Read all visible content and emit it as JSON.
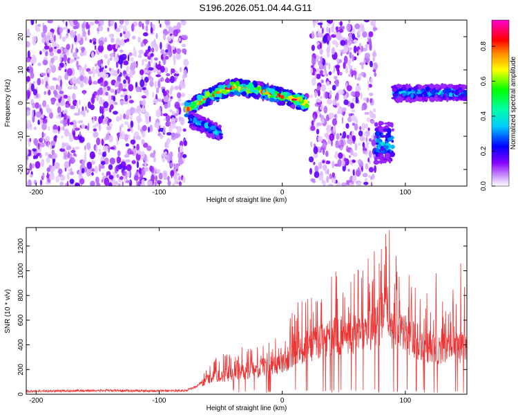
{
  "figure_title": "S196.2026.051.04.44.G11",
  "colors": {
    "axis": "#000000",
    "snr_line": "#ee3333",
    "background": "#ffffff"
  },
  "chart_data": [
    {
      "type": "heatmap",
      "title": "S196.2026.051.04.44.G11",
      "xlabel": "Height of straight line (km)",
      "ylabel": "Frequency (Hz)",
      "xlim": [
        -208,
        150
      ],
      "ylim": [
        -25,
        25
      ],
      "xticks": [
        -200,
        -100,
        0,
        100
      ],
      "yticks": [
        -20,
        -10,
        0,
        10,
        20
      ],
      "colorbar": {
        "label": "Normalized spectral amplitude",
        "range": [
          0,
          0.95
        ],
        "ticks": [
          0.0,
          0.2,
          0.4,
          0.6,
          0.8
        ],
        "tick_labels": [
          "0.0",
          "0.2",
          "0.4",
          "0.6",
          "0.8"
        ],
        "colormap": "rainbow (violet-blue-cyan-green-yellow-red-magenta)"
      },
      "regions": [
        {
          "name": "noise",
          "x_range": [
            -208,
            -78
          ],
          "f_range": [
            -25,
            25
          ],
          "level": "low"
        },
        {
          "name": "noise",
          "x_range": [
            23,
            76
          ],
          "f_range": [
            -25,
            25
          ],
          "level": "low"
        },
        {
          "name": "signal-track",
          "x_range": [
            -78,
            20
          ],
          "f_center": [
            [
              -78,
              -2
            ],
            [
              -60,
              2
            ],
            [
              -40,
              5
            ],
            [
              -20,
              4
            ],
            [
              0,
              2
            ],
            [
              20,
              0
            ]
          ],
          "level": "high"
        },
        {
          "name": "signal-branch",
          "x_range": [
            -75,
            -50
          ],
          "f_center": [
            [
              -75,
              -5
            ],
            [
              -62,
              -7
            ],
            [
              -52,
              -9
            ]
          ],
          "level": "mid"
        },
        {
          "name": "signal-burst",
          "x_range": [
            76,
            90
          ],
          "f_center": [
            [
              83,
              -12
            ]
          ],
          "level": "mid"
        },
        {
          "name": "signal-band",
          "x_range": [
            90,
            150
          ],
          "f_center": [
            [
              90,
              3
            ],
            [
              150,
              3
            ]
          ],
          "level": "mid"
        }
      ]
    },
    {
      "type": "line",
      "xlabel": "Height of straight line (km)",
      "ylabel": "SNR (10 * v/v)",
      "xlim": [
        -208,
        150
      ],
      "ylim": [
        0,
        1350
      ],
      "xticks": [
        -200,
        -100,
        0,
        100
      ],
      "yticks": [
        0,
        200,
        400,
        600,
        800,
        1000,
        1200
      ],
      "series": [
        {
          "name": "SNR",
          "x": [
            -208,
            -150,
            -100,
            -78,
            -70,
            -60,
            -50,
            -40,
            -30,
            -20,
            -10,
            0,
            10,
            20,
            30,
            40,
            50,
            60,
            70,
            80,
            85,
            90,
            100,
            110,
            120,
            130,
            140,
            150
          ],
          "values": [
            25,
            30,
            28,
            30,
            60,
            150,
            180,
            190,
            220,
            240,
            270,
            300,
            400,
            450,
            500,
            550,
            560,
            600,
            620,
            700,
            800,
            650,
            600,
            500,
            450,
            420,
            500,
            400
          ],
          "peaks_x": [
            75,
            80,
            83,
            87,
            95,
            105,
            125,
            145,
            148
          ],
          "peaks_values": [
            850,
            1000,
            1050,
            1330,
            950,
            870,
            980,
            1060,
            870
          ]
        }
      ]
    }
  ]
}
